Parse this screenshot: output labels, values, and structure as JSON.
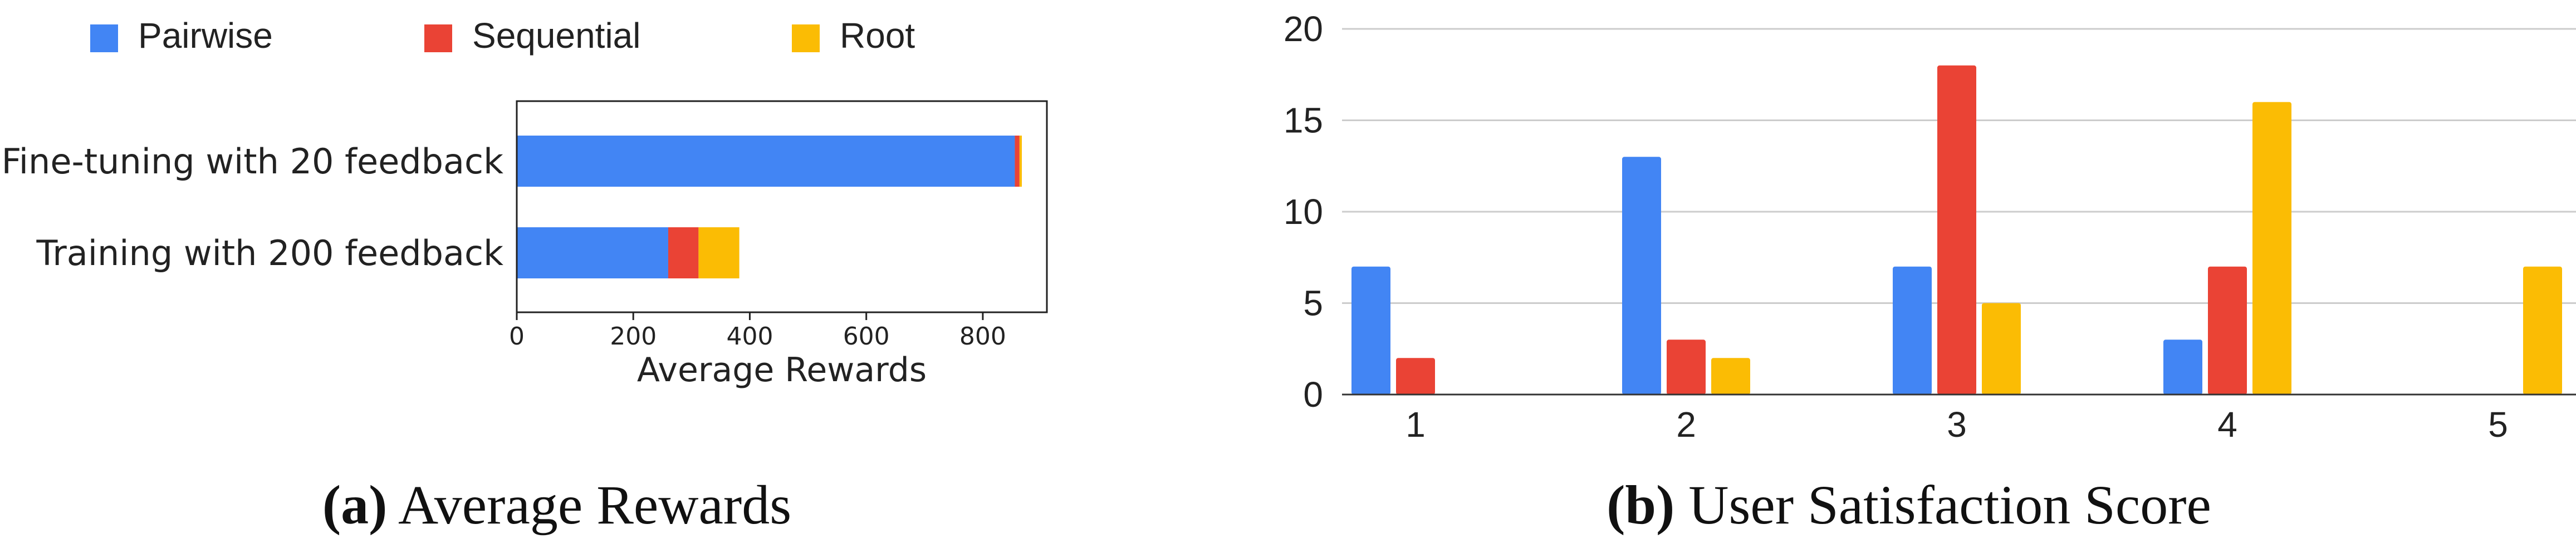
{
  "legend": {
    "items": [
      {
        "label": "Pairwise",
        "color": "#4285F4"
      },
      {
        "label": "Sequential",
        "color": "#EA4335"
      },
      {
        "label": "Root",
        "color": "#FBBC04"
      }
    ]
  },
  "captions": {
    "a_tag": "(a)",
    "a_text": " Average Rewards",
    "b_tag": "(b)",
    "b_text": " User Satisfaction Score"
  },
  "chart_data": [
    {
      "type": "bar",
      "orientation": "horizontal",
      "stacked": true,
      "categories": [
        "Fine-tuning with 20 feedback",
        "Training with 200 feedback"
      ],
      "series": [
        {
          "name": "Pairwise",
          "color": "#4285F4",
          "values": [
            855,
            260
          ]
        },
        {
          "name": "Sequential",
          "color": "#EA4335",
          "values": [
            8,
            52
          ]
        },
        {
          "name": "Root",
          "color": "#FBBC04",
          "values": [
            4,
            70
          ]
        }
      ],
      "xlabel": "Average Rewards",
      "xlim": [
        0,
        910
      ],
      "xticks": [
        "0",
        "200",
        "400",
        "600",
        "800"
      ],
      "xtick_values": [
        0,
        200,
        400,
        600,
        800
      ],
      "grid": false,
      "legend_position": "top"
    },
    {
      "type": "bar",
      "orientation": "vertical",
      "stacked": false,
      "categories": [
        "1",
        "2",
        "3",
        "4",
        "5"
      ],
      "series": [
        {
          "name": "Pairwise",
          "color": "#4285F4",
          "values": [
            7,
            13,
            7,
            3,
            0
          ]
        },
        {
          "name": "Sequential",
          "color": "#EA4335",
          "values": [
            2,
            3,
            18,
            7,
            0
          ]
        },
        {
          "name": "Root",
          "color": "#FBBC04",
          "values": [
            0,
            2,
            5,
            16,
            7
          ]
        }
      ],
      "ylim": [
        0,
        20
      ],
      "yticks": [
        "0",
        "5",
        "10",
        "15",
        "20"
      ],
      "ytick_values": [
        0,
        5,
        10,
        15,
        20
      ],
      "grid": true,
      "legend_position": "top"
    }
  ]
}
